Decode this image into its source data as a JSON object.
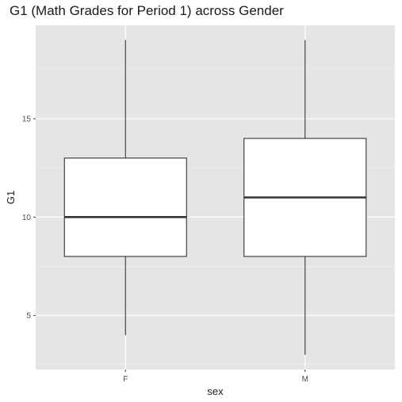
{
  "chart_data": {
    "type": "box",
    "title": "G1 (Math Grades for Period 1) across Gender",
    "xlabel": "sex",
    "ylabel": "G1",
    "categories": [
      "F",
      "M"
    ],
    "boxes": [
      {
        "category": "F",
        "min": 4,
        "q1": 8,
        "median": 10,
        "q3": 13,
        "max": 19
      },
      {
        "category": "M",
        "min": 3,
        "q1": 8,
        "median": 11,
        "q3": 14,
        "max": 19
      }
    ],
    "ylim": [
      2.25,
      19.75
    ],
    "yticks": [
      5,
      10,
      15
    ],
    "grid": true,
    "colors": {
      "panel": "#e5e5e5",
      "grid_major": "#ffffff",
      "box_fill": "#ffffff",
      "box_stroke": "#333333"
    }
  }
}
